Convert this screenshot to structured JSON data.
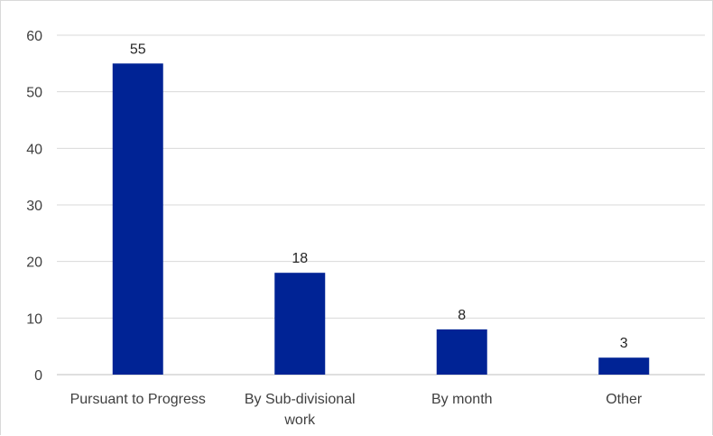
{
  "chart_data": {
    "type": "bar",
    "categories": [
      [
        "Pursuant to Progress"
      ],
      [
        "By Sub-divisional",
        "work"
      ],
      [
        "By month"
      ],
      [
        "Other"
      ]
    ],
    "values": [
      55,
      18,
      8,
      3
    ],
    "data_labels": [
      "55",
      "18",
      "8",
      "3"
    ],
    "yticks": [
      0,
      10,
      20,
      30,
      40,
      50,
      60
    ],
    "ylim": [
      0,
      60
    ],
    "grid": true,
    "legend": "none",
    "colors": {
      "bar": "#002395",
      "grid": "#d9d9d9",
      "axis": "#bfbfbf"
    }
  }
}
